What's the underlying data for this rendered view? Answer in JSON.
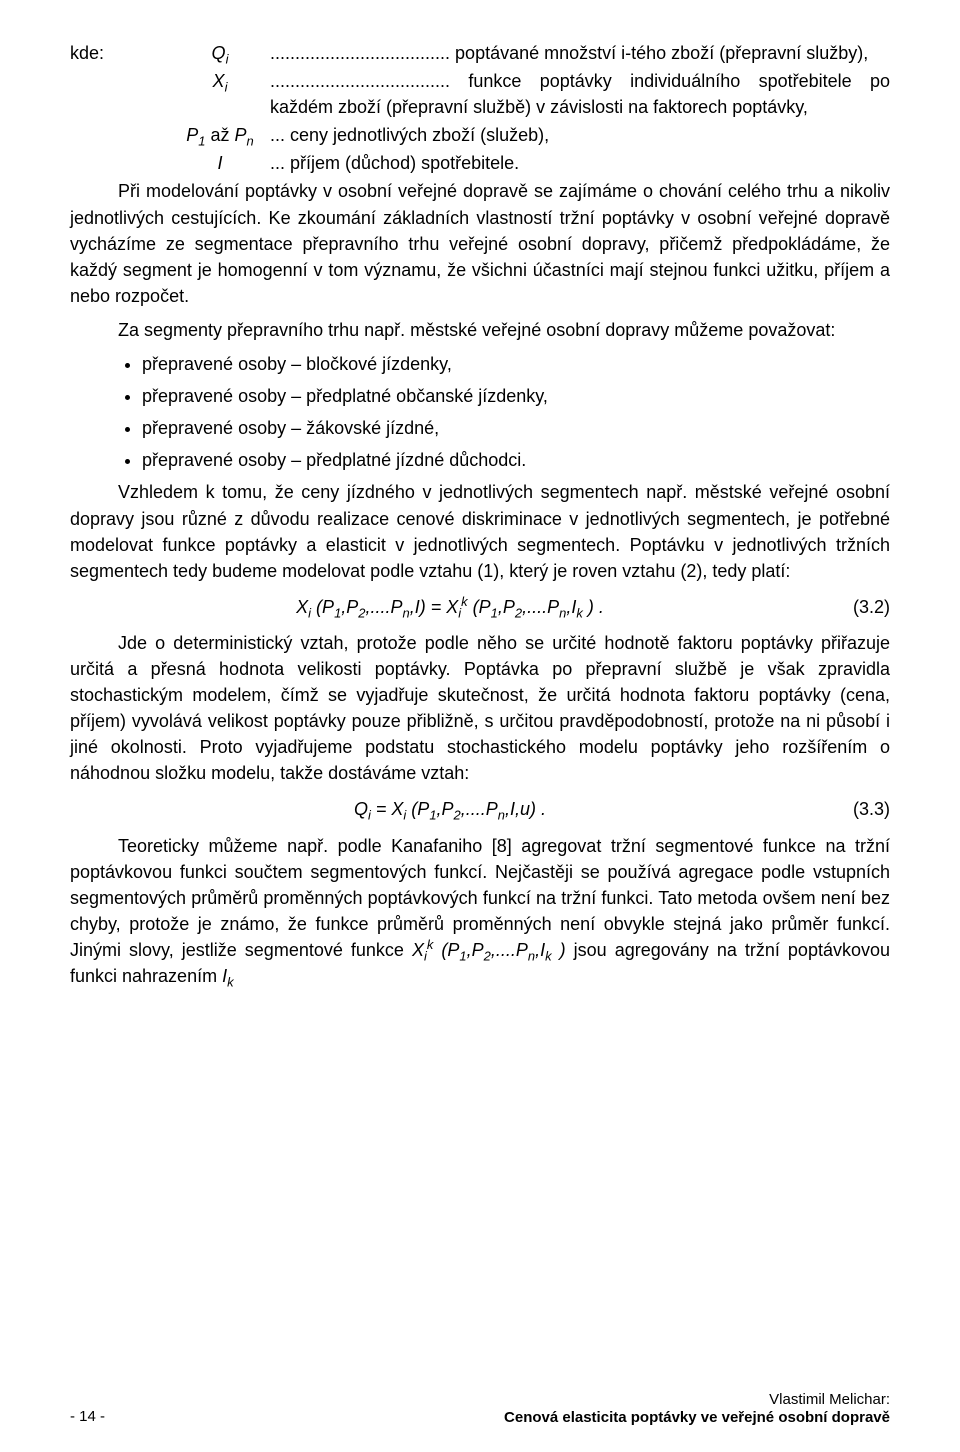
{
  "defs": {
    "kde_label": "kde:",
    "sym1": "Q",
    "sym1_sub": "i",
    "body1": "poptávané množství i-tého zboží (přepravní služby),",
    "sym2": "X",
    "sym2_sub": "i",
    "body2": "funkce poptávky individuálního spotřebitele po každém zboží (přepravní službě) v závislosti na faktorech poptávky,",
    "sym3_p1": "P",
    "sym3_s1": "1",
    "sym3_az": " až ",
    "sym3_p2": "P",
    "sym3_s2": "n",
    "body3": "ceny jednotlivých zboží (služeb),",
    "sym4": "I",
    "body4": "příjem (důchod) spotřebitele.",
    "dots_prefix": ".................................... ",
    "dots_long": "................................................................................ ",
    "dots_mid": "... ",
    "dots_short": "............................................................................... "
  },
  "para1": "Při modelování poptávky v osobní veřejné dopravě se zajímáme o chování celého trhu a nikoliv jednotlivých cestujících. Ke zkoumání základních vlastností tržní poptávky v osobní veřejné dopravě vycházíme ze segmentace přepravního trhu veřejné osobní dopravy, přičemž předpokládáme, že každý segment je homogenní v tom významu, že všichni účastníci mají stejnou funkci užitku, příjem a nebo rozpočet.",
  "para2": "Za segmenty přepravního trhu např. městské veřejné osobní dopravy můžeme považovat:",
  "bullets": {
    "b1": "přepravené osoby – bločkové jízdenky,",
    "b2": "přepravené osoby – předplatné občanské jízdenky,",
    "b3": "přepravené osoby – žákovské jízdné,",
    "b4": "přepravené osoby – předplatné jízdné důchodci."
  },
  "para3": "Vzhledem k tomu, že ceny jízdného v jednotlivých segmentech např. městské veřejné osobní dopravy jsou různé z důvodu realizace cenové diskriminace v jednotlivých segmentech, je potřebné modelovat funkce poptávky a elasticit v jednotlivých segmentech. Poptávku v jednotlivých tržních segmentech tedy budeme modelovat podle vztahu (1), který je roven vztahu (2), tedy platí:",
  "eq1": {
    "lhs": "X<span class=\"sub\">i</span> (P<span class=\"sub\">1</span>,P<span class=\"sub\">2</span>,....P<span class=\"sub\">n</span>,I) = X<span class=\"sub\">i</span><span class=\"sup\">k</span> (P<span class=\"sub\">1</span>,P<span class=\"sub\">2</span>,....P<span class=\"sub\">n</span>,I<span class=\"sub\">k</span> ) .",
    "num": "(3.2)"
  },
  "para4": "Jde o deterministický vztah, protože podle něho se určité hodnotě faktoru poptávky přiřazuje určitá a přesná hodnota velikosti poptávky. Poptávka po přepravní službě je však zpravidla stochastickým modelem, čímž se vyjadřuje skutečnost, že určitá hodnota faktoru poptávky (cena, příjem) vyvolává velikost poptávky pouze přibližně, s určitou pravděpodobností, protože na ni působí i jiné okolnosti. Proto vyjadřujeme podstatu stochastického modelu poptávky jeho rozšířením o náhodnou složku modelu, takže dostáváme vztah:",
  "eq2": {
    "lhs": "Q<span class=\"sub\">i</span> = X<span class=\"sub\">i</span> (P<span class=\"sub\">1</span>,P<span class=\"sub\">2</span>,....P<span class=\"sub\">n</span>,I,u) .",
    "num": "(3.3)"
  },
  "para5_p1": "Teoreticky můžeme např. podle Kanafaniho [8] agregovat tržní segmentové funkce na tržní poptávkovou funkci součtem segmentových funkcí. Nejčastěji se používá agregace podle vstupních segmentových průměrů proměnných poptávkových funkcí na tržní funkci. Tato metoda ovšem není bez chyby, protože je známo, že funkce průměrů proměnných není obvykle stejná jako průměr funkcí. Jinými slovy, jestliže segmentové funkce ",
  "para5_fn": "X<span class=\"sub\">i</span><span class=\"sup\">k</span> (P<span class=\"sub\">1</span>,P<span class=\"sub\">2</span>,....P<span class=\"sub\">n</span>,I<span class=\"sub\">k</span> )",
  "para5_p2": " jsou agregovány na tržní poptávkovou funkci nahrazením ",
  "para5_Ik": "I<span class=\"sub\">k</span>",
  "footer": {
    "page": "- 14 -",
    "author": "Vlastimil Melichar:",
    "title": "Cenová elasticita poptávky ve veřejné osobní dopravě"
  }
}
